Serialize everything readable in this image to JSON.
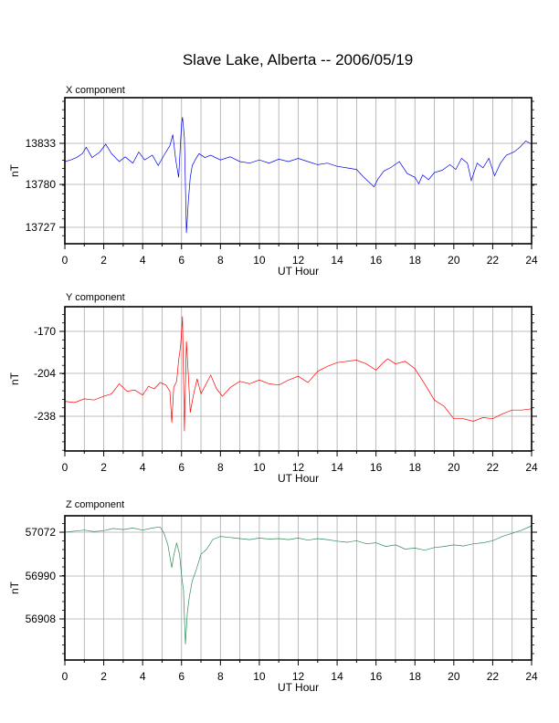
{
  "page": {
    "title": "Slave Lake, Alberta -- 2006/05/19"
  },
  "chart_data": [
    {
      "type": "line",
      "title": "X component",
      "xlabel": "UT Hour",
      "ylabel": "nT",
      "xlim": [
        0,
        24
      ],
      "ylim": [
        13703,
        13883
      ],
      "x_ticks": [
        "0",
        "2",
        "4",
        "6",
        "8",
        "10",
        "12",
        "14",
        "16",
        "18",
        "20",
        "22",
        "24"
      ],
      "y_ticks": [
        "13833",
        "13780",
        "13727"
      ],
      "color": "#0000ee",
      "grid": true,
      "series": [
        {
          "x": [
            0,
            0.3,
            0.6,
            0.9,
            1.1,
            1.4,
            1.8,
            2.1,
            2.4,
            2.8,
            3.1,
            3.5,
            3.8,
            4.1,
            4.5,
            4.8,
            5.1,
            5.4,
            5.55,
            5.7,
            5.85,
            6.0,
            6.05,
            6.15,
            6.25,
            6.35,
            6.45,
            6.55,
            6.7,
            6.9,
            7.2,
            7.5,
            8,
            8.5,
            9,
            9.5,
            10,
            10.5,
            11,
            11.5,
            12,
            12.5,
            13,
            13.5,
            14,
            14.5,
            15,
            15.3,
            15.6,
            15.9,
            16.1,
            16.4,
            16.8,
            17.2,
            17.6,
            18,
            18.2,
            18.4,
            18.7,
            19,
            19.4,
            19.8,
            20.1,
            20.4,
            20.7,
            20.9,
            21.2,
            21.5,
            21.8,
            22.1,
            22.4,
            22.7,
            23.1,
            23.4,
            23.7,
            24
          ],
          "y": [
            13810,
            13812,
            13815,
            13820,
            13828,
            13815,
            13822,
            13832,
            13820,
            13810,
            13816,
            13808,
            13822,
            13812,
            13818,
            13805,
            13818,
            13830,
            13844,
            13812,
            13790,
            13858,
            13866,
            13840,
            13720,
            13760,
            13790,
            13805,
            13812,
            13820,
            13815,
            13818,
            13812,
            13816,
            13810,
            13808,
            13812,
            13808,
            13813,
            13810,
            13814,
            13810,
            13806,
            13808,
            13804,
            13802,
            13800,
            13792,
            13785,
            13778,
            13788,
            13798,
            13803,
            13810,
            13795,
            13790,
            13782,
            13793,
            13787,
            13796,
            13799,
            13806,
            13800,
            13814,
            13808,
            13786,
            13808,
            13802,
            13814,
            13792,
            13808,
            13818,
            13822,
            13828,
            13836,
            13832
          ]
        }
      ]
    },
    {
      "type": "line",
      "title": "Y component",
      "xlabel": "UT Hour",
      "ylabel": "nT",
      "xlim": [
        0,
        24
      ],
      "ylim": [
        -265,
        -144
      ],
      "x_ticks": [
        "0",
        "2",
        "4",
        "6",
        "8",
        "10",
        "12",
        "14",
        "16",
        "18",
        "20",
        "22",
        "24"
      ],
      "y_ticks": [
        "-170",
        "-204",
        "-238"
      ],
      "color": "#ff0000",
      "grid": true,
      "series": [
        {
          "x": [
            0,
            0.5,
            1,
            1.5,
            2,
            2.4,
            2.8,
            3.2,
            3.6,
            4,
            4.3,
            4.6,
            4.9,
            5.2,
            5.4,
            5.5,
            5.6,
            5.75,
            5.85,
            5.95,
            6.05,
            6.15,
            6.25,
            6.35,
            6.45,
            6.6,
            6.8,
            7,
            7.2,
            7.5,
            7.8,
            8.1,
            8.5,
            9,
            9.5,
            10,
            10.5,
            11,
            11.5,
            12,
            12.5,
            13,
            13.5,
            14,
            14.5,
            15,
            15.5,
            16,
            16.3,
            16.6,
            17,
            17.5,
            18,
            18.5,
            19,
            19.5,
            20,
            20.5,
            21,
            21.5,
            22,
            22.5,
            23,
            23.5,
            24
          ],
          "y": [
            -226,
            -227,
            -224,
            -225,
            -222,
            -220,
            -212,
            -218,
            -217,
            -221,
            -214,
            -216,
            -211,
            -213,
            -218,
            -243,
            -215,
            -210,
            -193,
            -182,
            -158,
            -250,
            -178,
            -205,
            -235,
            -222,
            -208,
            -220,
            -214,
            -205,
            -216,
            -222,
            -215,
            -210,
            -212,
            -209,
            -212,
            -213,
            -209,
            -206,
            -211,
            -202,
            -198,
            -195,
            -194,
            -193,
            -196,
            -201,
            -196,
            -192,
            -196,
            -194,
            -200,
            -212,
            -225,
            -230,
            -240,
            -240,
            -242,
            -239,
            -240,
            -236,
            -233,
            -233,
            -232
          ]
        }
      ]
    },
    {
      "type": "line",
      "title": "Z component",
      "xlabel": "UT Hour",
      "ylabel": "nT",
      "xlim": [
        0,
        24
      ],
      "ylim": [
        56840,
        57095
      ],
      "x_ticks": [
        "0",
        "2",
        "4",
        "6",
        "8",
        "10",
        "12",
        "14",
        "16",
        "18",
        "20",
        "22",
        "24"
      ],
      "y_ticks": [
        "57072",
        "56990",
        "56908"
      ],
      "color": "#2e8b57",
      "grid": true,
      "series": [
        {
          "x": [
            0,
            0.5,
            1,
            1.5,
            2,
            2.5,
            3,
            3.5,
            4,
            4.5,
            4.9,
            5.1,
            5.3,
            5.5,
            5.6,
            5.75,
            5.9,
            6.0,
            6.1,
            6.2,
            6.3,
            6.4,
            6.55,
            6.75,
            7,
            7.3,
            7.6,
            8,
            8.5,
            9,
            9.5,
            10,
            10.5,
            11,
            11.5,
            12,
            12.5,
            13,
            13.5,
            14,
            14.5,
            15,
            15.5,
            16,
            16.5,
            17,
            17.5,
            18,
            18.5,
            19,
            19.5,
            20,
            20.5,
            21,
            21.5,
            22,
            22.5,
            23,
            23.5,
            24
          ],
          "y": [
            57072,
            57074,
            57076,
            57073,
            57075,
            57079,
            57077,
            57080,
            57076,
            57080,
            57082,
            57070,
            57048,
            57005,
            57028,
            57052,
            57030,
            56990,
            56962,
            56860,
            56920,
            56950,
            56980,
            57000,
            57030,
            57040,
            57058,
            57064,
            57062,
            57060,
            57058,
            57061,
            57059,
            57060,
            57058,
            57061,
            57057,
            57060,
            57058,
            57055,
            57053,
            57056,
            57050,
            57052,
            57045,
            57048,
            57040,
            57042,
            57038,
            57043,
            57045,
            57048,
            57046,
            57050,
            57052,
            57056,
            57064,
            57070,
            57076,
            57084
          ]
        }
      ]
    }
  ]
}
